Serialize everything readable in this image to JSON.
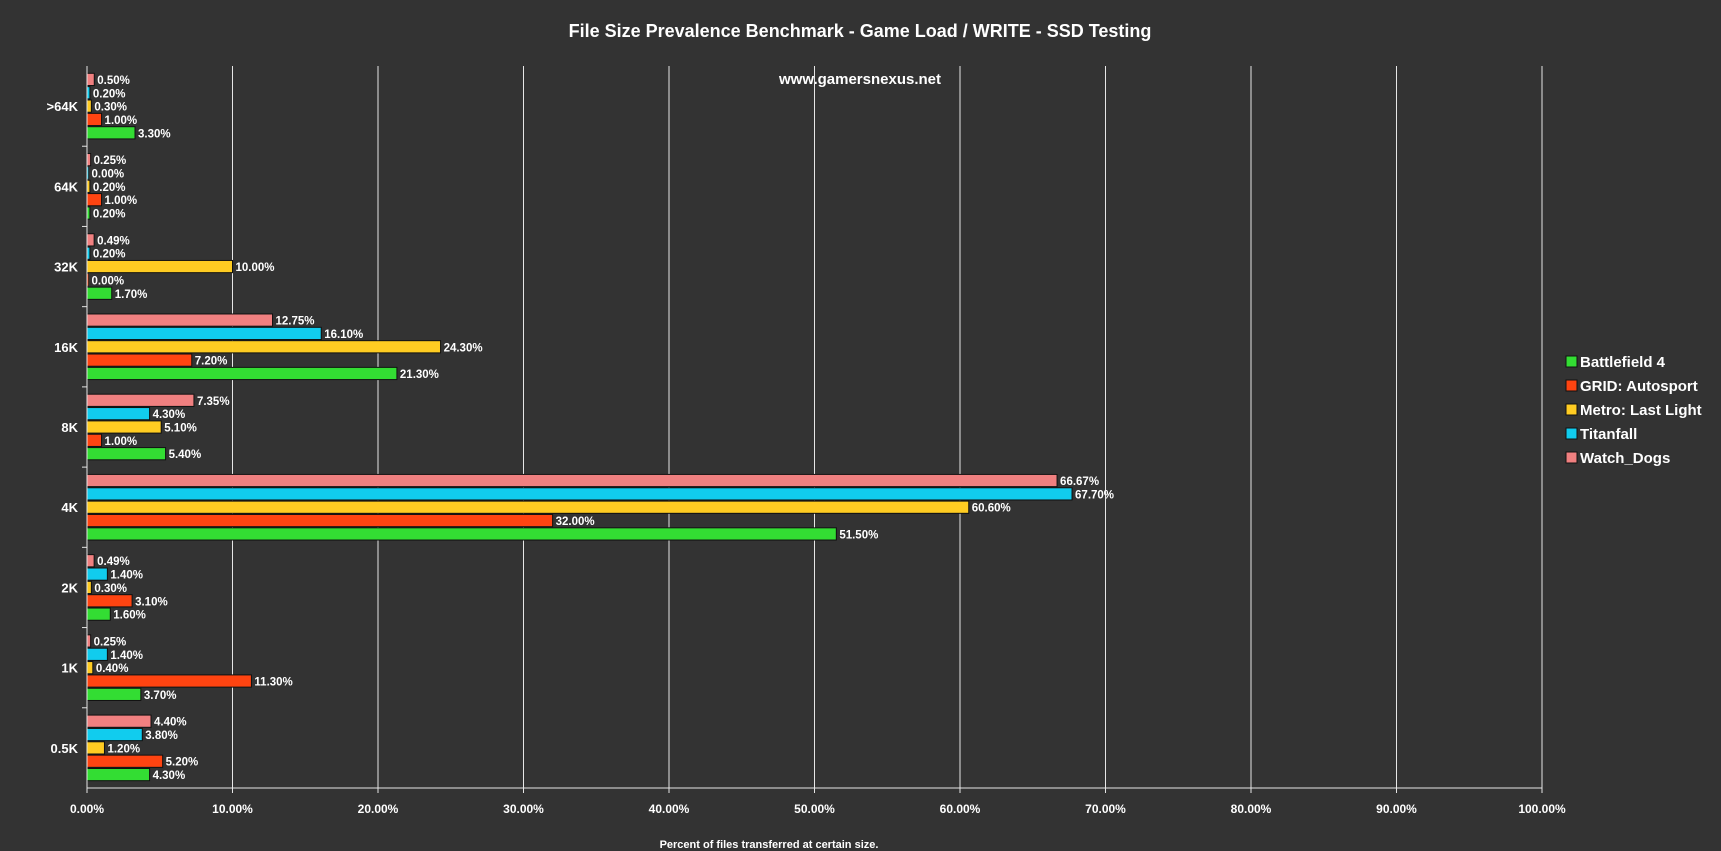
{
  "chart_data": {
    "type": "bar",
    "orientation": "horizontal",
    "title": "File Size Prevalence Benchmark - Game Load / WRITE - SSD Testing",
    "watermark": "www.gamersnexus.net",
    "xlabel": "Percent of files transferred at certain size.",
    "ylabel": "",
    "xlim": [
      0,
      100
    ],
    "x_ticks": [
      "0.00%",
      "10.00%",
      "20.00%",
      "30.00%",
      "40.00%",
      "50.00%",
      "60.00%",
      "70.00%",
      "80.00%",
      "90.00%",
      "100.00%"
    ],
    "grid": true,
    "legend_position": "right",
    "categories": [
      ">64K",
      "64K",
      "32K",
      "16K",
      "8K",
      "4K",
      "2K",
      "1K",
      "0.5K"
    ],
    "series": [
      {
        "name": "Battlefield 4",
        "color": "#33dd33",
        "values": [
          3.3,
          0.2,
          1.7,
          21.3,
          5.4,
          51.5,
          1.6,
          3.7,
          4.3
        ],
        "labels": [
          "3.30%",
          "0.20%",
          "1.70%",
          "21.30%",
          "5.40%",
          "51.50%",
          "1.60%",
          "3.70%",
          "4.30%"
        ]
      },
      {
        "name": "GRID: Autosport",
        "color": "#ff4411",
        "values": [
          1.0,
          1.0,
          0.0,
          7.2,
          1.0,
          32.0,
          3.1,
          11.3,
          5.2
        ],
        "labels": [
          "1.00%",
          "1.00%",
          "0.00%",
          "7.20%",
          "1.00%",
          "32.00%",
          "3.10%",
          "11.30%",
          "5.20%"
        ]
      },
      {
        "name": "Metro: Last Light",
        "color": "#ffcc22",
        "values": [
          0.3,
          0.2,
          10.0,
          24.3,
          5.1,
          60.6,
          0.3,
          0.4,
          1.2
        ],
        "labels": [
          "0.30%",
          "0.20%",
          "10.00%",
          "24.30%",
          "5.10%",
          "60.60%",
          "0.30%",
          "0.40%",
          "1.20%"
        ]
      },
      {
        "name": "Titanfall",
        "color": "#11ccee",
        "values": [
          0.2,
          0.0,
          0.2,
          16.1,
          4.3,
          67.7,
          1.4,
          1.4,
          3.8
        ],
        "labels": [
          "0.20%",
          "0.00%",
          "0.20%",
          "16.10%",
          "4.30%",
          "67.70%",
          "1.40%",
          "1.40%",
          "3.80%"
        ]
      },
      {
        "name": "Watch_Dogs",
        "color": "#f08080",
        "values": [
          0.5,
          0.25,
          0.49,
          12.75,
          7.35,
          66.67,
          0.49,
          0.25,
          4.4
        ],
        "labels": [
          "0.50%",
          "0.25%",
          "0.49%",
          "12.75%",
          "7.35%",
          "66.67%",
          "0.49%",
          "0.25%",
          "4.40%"
        ]
      }
    ]
  }
}
